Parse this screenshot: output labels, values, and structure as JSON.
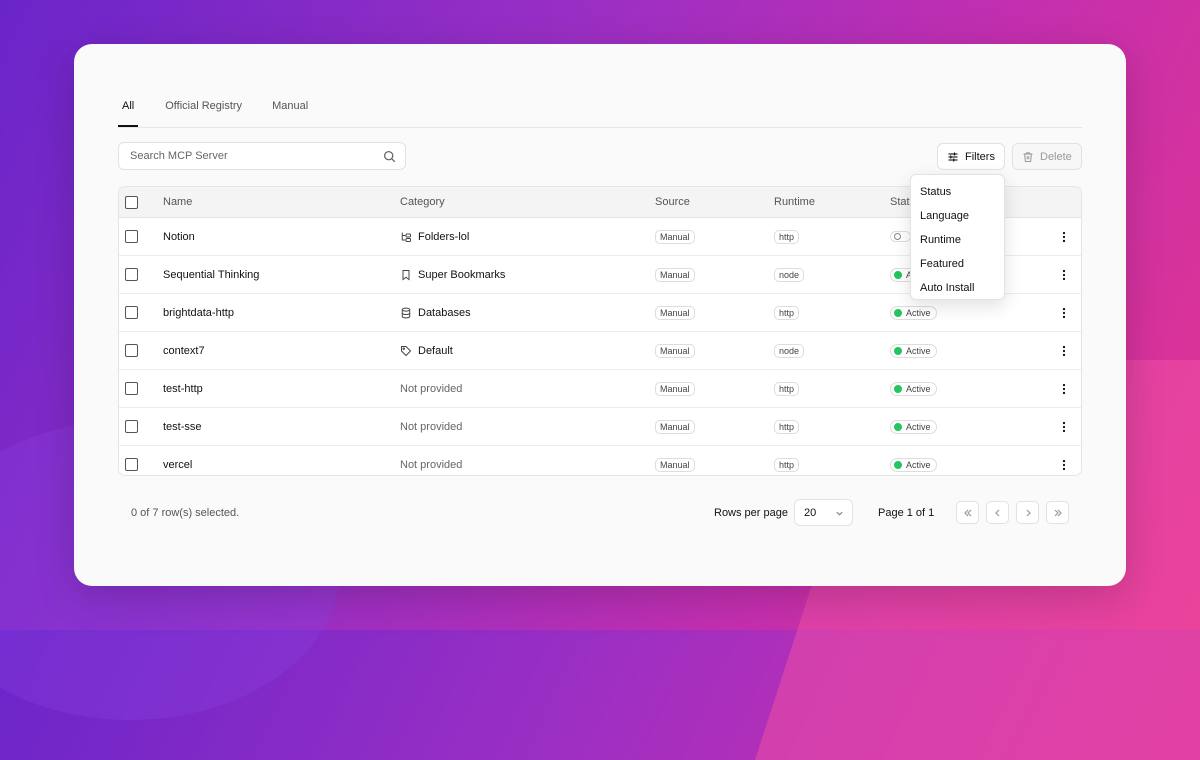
{
  "tabs": [
    {
      "label": "All",
      "active": true
    },
    {
      "label": "Official Registry",
      "active": false
    },
    {
      "label": "Manual",
      "active": false
    }
  ],
  "search": {
    "placeholder": "Search MCP Server",
    "icon": "search-icon"
  },
  "toolbar": {
    "filters_label": "Filters",
    "delete_label": "Delete"
  },
  "table": {
    "headers": {
      "name": "Name",
      "category": "Category",
      "source": "Source",
      "runtime": "Runtime",
      "status": "Stat"
    },
    "rows": [
      {
        "name": "Notion",
        "category": "Folders-lol",
        "category_icon": "folder-tree-icon",
        "source": "Manual",
        "runtime": "http",
        "status": "",
        "active": false
      },
      {
        "name": "Sequential Thinking",
        "category": "Super Bookmarks",
        "category_icon": "bookmark-icon",
        "source": "Manual",
        "runtime": "node",
        "status": "A",
        "active": true
      },
      {
        "name": "brightdata-http",
        "category": "Databases",
        "category_icon": "database-icon",
        "source": "Manual",
        "runtime": "http",
        "status": "Active",
        "active": true
      },
      {
        "name": "context7",
        "category": "Default",
        "category_icon": "tag-icon",
        "source": "Manual",
        "runtime": "node",
        "status": "Active",
        "active": true
      },
      {
        "name": "test-http",
        "category": "Not provided",
        "category_icon": "",
        "source": "Manual",
        "runtime": "http",
        "status": "Active",
        "active": true
      },
      {
        "name": "test-sse",
        "category": "Not provided",
        "category_icon": "",
        "source": "Manual",
        "runtime": "http",
        "status": "Active",
        "active": true
      },
      {
        "name": "vercel",
        "category": "Not provided",
        "category_icon": "",
        "source": "Manual",
        "runtime": "http",
        "status": "Active",
        "active": true
      }
    ]
  },
  "filters_menu": [
    "Status",
    "Language",
    "Runtime",
    "Featured",
    "Auto Install"
  ],
  "footer": {
    "selection": "0 of 7 row(s) selected.",
    "rows_per_page_label": "Rows per page",
    "rows_per_page": "20",
    "page_label": "Page 1 of 1"
  },
  "colors": {
    "active_dot": "#22c55e",
    "accent": "#111111"
  }
}
